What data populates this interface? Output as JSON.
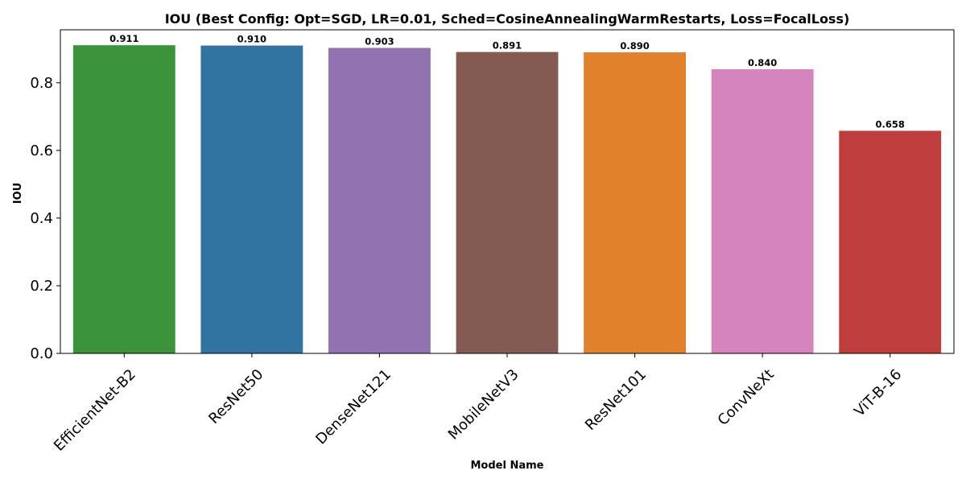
{
  "chart_data": {
    "type": "bar",
    "title": "IOU (Best Config: Opt=SGD, LR=0.01, Sched=CosineAnnealingWarmRestarts, Loss=FocalLoss)",
    "xlabel": "Model Name",
    "ylabel": "IOU",
    "categories": [
      "EfficientNet-B2",
      "ResNet50",
      "DenseNet121",
      "MobileNetV3",
      "ResNet101",
      "ConvNeXt",
      "ViT-B-16"
    ],
    "values": [
      0.911,
      0.91,
      0.903,
      0.891,
      0.89,
      0.84,
      0.658
    ],
    "value_labels": [
      "0.911",
      "0.910",
      "0.903",
      "0.891",
      "0.890",
      "0.840",
      "0.658"
    ],
    "colors": [
      "#3a923a",
      "#3274a1",
      "#9372b2",
      "#845b53",
      "#e1812c",
      "#d684bd",
      "#c03d3e"
    ],
    "ylim": [
      0,
      0.9566
    ],
    "yticks": [
      0.0,
      0.2,
      0.4,
      0.6,
      0.8
    ],
    "ytick_labels": [
      "0.0",
      "0.2",
      "0.4",
      "0.6",
      "0.8"
    ],
    "grid": false,
    "legend": "none"
  }
}
